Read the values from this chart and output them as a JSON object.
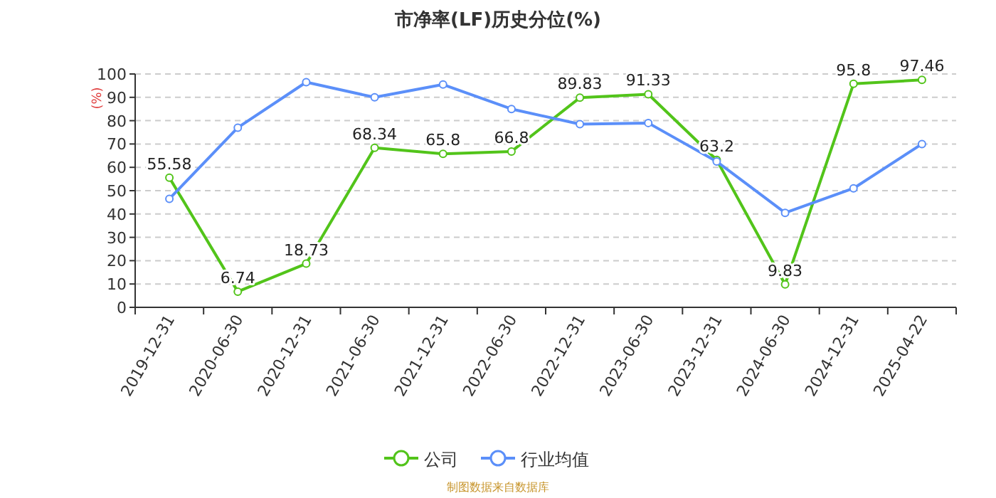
{
  "chart_data": {
    "type": "line",
    "title": "市净率(LF)历史分位(%)",
    "ylabel": "(%)",
    "categories": [
      "2019-12-31",
      "2020-06-30",
      "2020-12-31",
      "2021-06-30",
      "2021-12-31",
      "2022-06-30",
      "2022-12-31",
      "2023-06-30",
      "2023-12-31",
      "2024-06-30",
      "2024-12-31",
      "2025-04-22"
    ],
    "series": [
      {
        "name": "公司",
        "color": "#52c41a",
        "values": [
          55.58,
          6.74,
          18.73,
          68.34,
          65.8,
          66.8,
          89.83,
          91.33,
          63.2,
          9.83,
          95.8,
          97.46
        ],
        "value_labels": [
          "55.58",
          "6.74",
          "18.73",
          "68.34",
          "65.8",
          "66.8",
          "89.83",
          "91.33",
          "63.2",
          "9.83",
          "95.8",
          "97.46"
        ]
      },
      {
        "name": "行业均值",
        "color": "#5b8ff9",
        "values": [
          46.5,
          77,
          96.5,
          90,
          95.5,
          85,
          78.5,
          79,
          62.5,
          40.5,
          51,
          70
        ]
      }
    ],
    "ylim": [
      0,
      100
    ],
    "yticks": [
      0,
      10,
      20,
      30,
      40,
      50,
      60,
      70,
      80,
      90,
      100
    ],
    "grid": "y",
    "legend": "bottom",
    "marker": "circle",
    "line_style": "solid",
    "annotations": [
      "制图数据来自数据库"
    ]
  }
}
